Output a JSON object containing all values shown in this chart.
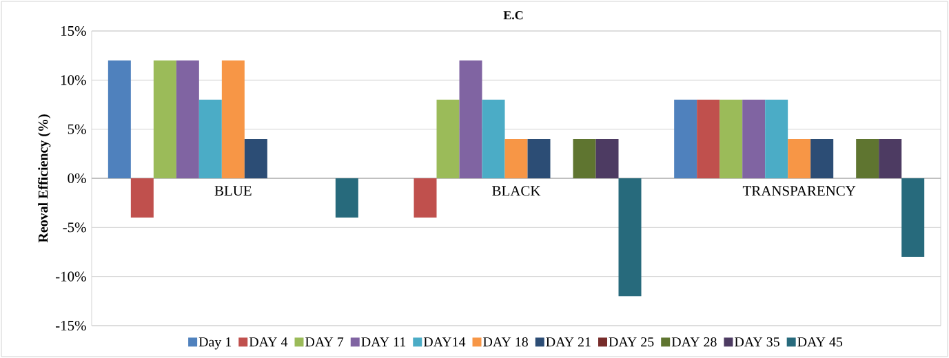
{
  "chart_data": {
    "type": "bar",
    "title": "E.C",
    "ylabel": "Reoval Efficiency (%)",
    "categories": [
      "BLUE",
      "BLACK",
      "TRANSPARENCY"
    ],
    "series": [
      {
        "name": "Day 1",
        "color": "#4f81bd",
        "values": [
          12,
          0,
          8
        ]
      },
      {
        "name": "DAY 4",
        "color": "#c0504d",
        "values": [
          -4,
          -4,
          8
        ]
      },
      {
        "name": "DAY 7",
        "color": "#9bbb59",
        "values": [
          12,
          8,
          8
        ]
      },
      {
        "name": "DAY 11",
        "color": "#8064a2",
        "values": [
          12,
          12,
          8
        ]
      },
      {
        "name": "DAY14",
        "color": "#4bacc6",
        "values": [
          8,
          8,
          8
        ]
      },
      {
        "name": "DAY 18",
        "color": "#f79646",
        "values": [
          12,
          4,
          4
        ]
      },
      {
        "name": "DAY 21",
        "color": "#2c4d75",
        "values": [
          4,
          4,
          4
        ]
      },
      {
        "name": "DAY 25",
        "color": "#772c2a",
        "values": [
          0,
          0,
          0
        ]
      },
      {
        "name": "DAY 28",
        "color": "#5f7530",
        "values": [
          0,
          4,
          4
        ]
      },
      {
        "name": "DAY 35",
        "color": "#4d3b62",
        "values": [
          0,
          4,
          4
        ]
      },
      {
        "name": "DAY 45",
        "color": "#276a7c",
        "values": [
          -4,
          -12,
          -8
        ]
      }
    ],
    "ylim": [
      -15,
      15
    ],
    "yticks": [
      {
        "value": -15,
        "label": "-15%"
      },
      {
        "value": -10,
        "label": "-10%"
      },
      {
        "value": -5,
        "label": "-5%"
      },
      {
        "value": 0,
        "label": "0%"
      },
      {
        "value": 5,
        "label": "5%"
      },
      {
        "value": 10,
        "label": "10%"
      },
      {
        "value": 15,
        "label": "15%"
      }
    ],
    "grid": true,
    "legend": "bottom"
  }
}
